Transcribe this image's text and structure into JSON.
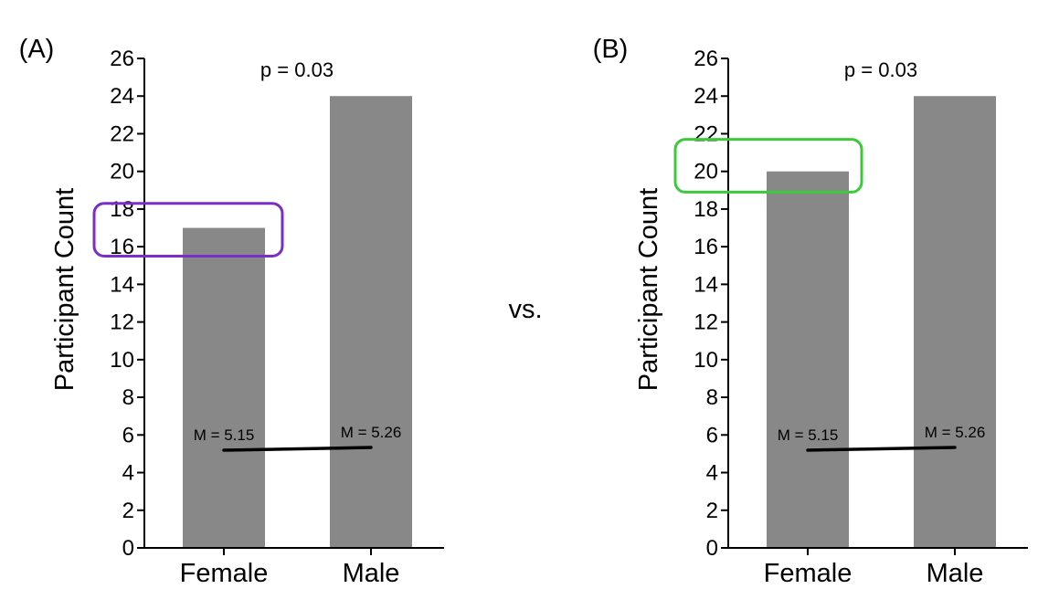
{
  "vs_label": "vs.",
  "colors": {
    "bar": "#888888",
    "axis": "#000000",
    "highlight_a": "#7a2ec9",
    "highlight_b": "#3cc93c"
  },
  "chart_data": [
    {
      "type": "bar",
      "panel_label": "(A)",
      "title": "",
      "xlabel": "",
      "ylabel": "Participant Count",
      "ylim": [
        0,
        26
      ],
      "yticks": [
        0,
        2,
        4,
        6,
        8,
        10,
        12,
        14,
        16,
        18,
        20,
        22,
        24,
        26
      ],
      "categories": [
        "Female",
        "Male"
      ],
      "values": [
        17,
        24
      ],
      "p_value": "p = 0.03",
      "means": [
        {
          "label": "M = 5.15",
          "value": 5.15
        },
        {
          "label": "M = 5.26",
          "value": 5.26
        }
      ],
      "highlight": {
        "value_range": [
          15.5,
          18.3
        ],
        "color": "#7a2ec9"
      }
    },
    {
      "type": "bar",
      "panel_label": "(B)",
      "title": "",
      "xlabel": "",
      "ylabel": "Participant Count",
      "ylim": [
        0,
        26
      ],
      "yticks": [
        0,
        2,
        4,
        6,
        8,
        10,
        12,
        14,
        16,
        18,
        20,
        22,
        24,
        26
      ],
      "categories": [
        "Female",
        "Male"
      ],
      "values": [
        20,
        24
      ],
      "p_value": "p = 0.03",
      "means": [
        {
          "label": "M = 5.15",
          "value": 5.15
        },
        {
          "label": "M = 5.26",
          "value": 5.26
        }
      ],
      "highlight": {
        "value_range": [
          18.9,
          21.7
        ],
        "color": "#3cc93c"
      }
    }
  ]
}
